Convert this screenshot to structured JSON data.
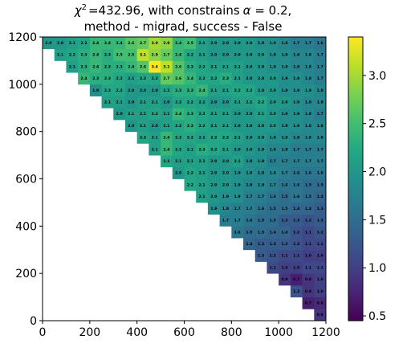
{
  "chart_data": {
    "type": "heatmap",
    "title_line1": "=432.96, with constrains",
    "title_chi": "χ",
    "title_chi_sup": "2",
    "title_alpha": "α",
    "title_alpha_value": " = 0.2,",
    "title_line2": "method - migrad, success - False",
    "xlim": [
      0,
      1200
    ],
    "ylim": [
      0,
      1200
    ],
    "x_ticks": [
      "0",
      "200",
      "400",
      "600",
      "800",
      "1000",
      "1200"
    ],
    "x_tick_values": [
      0,
      200,
      400,
      600,
      800,
      1000,
      1200
    ],
    "y_ticks": [
      "0",
      "200",
      "400",
      "600",
      "800",
      "1000",
      "1200"
    ],
    "y_tick_values": [
      0,
      200,
      400,
      600,
      800,
      1000,
      1200
    ],
    "colorbar_ticks": [
      "0.5",
      "1.0",
      "1.5",
      "2.0",
      "2.5",
      "3.0"
    ],
    "colorbar_tick_values": [
      0.5,
      1.0,
      1.5,
      2.0,
      2.5,
      3.0
    ],
    "colorbar_range": [
      0.45,
      3.4
    ],
    "colormap": "viridis",
    "bin_size": 50,
    "n_bins": 24,
    "layout_note_free": true,
    "rows": [
      [
        0.9
      ],
      [
        0.7,
        0.8
      ],
      [
        1.2,
        0.9,
        1.0
      ],
      [
        0.9,
        0.7,
        0.9,
        1.0
      ],
      [
        1.1,
        1.0,
        1.0,
        1.1,
        1.1
      ],
      [
        1.3,
        1.2,
        1.1,
        1.1,
        1.0,
        1.0
      ],
      [
        1.4,
        1.3,
        1.3,
        1.3,
        1.2,
        1.1,
        1.1
      ],
      [
        1.6,
        1.5,
        1.5,
        1.4,
        1.4,
        1.2,
        1.1,
        1.2
      ],
      [
        1.7,
        1.7,
        1.6,
        1.5,
        1.5,
        1.3,
        1.3,
        1.2,
        1.3
      ],
      [
        1.9,
        1.8,
        1.7,
        1.7,
        1.6,
        1.5,
        1.5,
        1.4,
        1.4,
        1.3
      ],
      [
        2.1,
        2.0,
        1.9,
        1.9,
        1.7,
        1.7,
        1.6,
        1.5,
        1.6,
        1.5,
        1.4
      ],
      [
        2.2,
        2.1,
        2.0,
        2.0,
        1.9,
        1.8,
        1.8,
        1.7,
        1.6,
        1.6,
        1.5,
        1.5
      ],
      [
        2.0,
        2.2,
        2.1,
        2.0,
        2.0,
        1.9,
        1.9,
        1.8,
        1.8,
        1.7,
        1.6,
        1.6,
        1.6
      ],
      [
        2.2,
        2.1,
        2.1,
        2.1,
        2.0,
        2.0,
        2.1,
        1.9,
        1.9,
        1.7,
        1.7,
        1.7,
        1.7,
        1.7
      ],
      [
        2.1,
        2.4,
        2.2,
        2.1,
        2.3,
        2.2,
        2.1,
        2.0,
        2.0,
        1.9,
        1.8,
        1.8,
        1.7,
        1.7,
        1.7
      ],
      [
        2.2,
        2.1,
        2.4,
        2.2,
        2.2,
        2.1,
        2.2,
        2.2,
        2.1,
        2.0,
        2.0,
        1.9,
        1.9,
        1.8,
        1.8,
        1.8
      ],
      [
        2.0,
        2.1,
        2.0,
        2.1,
        2.2,
        2.3,
        2.2,
        2.1,
        2.1,
        2.0,
        2.0,
        2.0,
        2.0,
        1.9,
        1.9,
        1.8,
        1.8
      ],
      [
        2.0,
        2.1,
        2.1,
        2.2,
        2.1,
        2.4,
        2.3,
        2.2,
        2.1,
        2.1,
        2.0,
        2.0,
        2.1,
        2.0,
        1.9,
        1.9,
        1.8,
        1.7
      ],
      [
        2.1,
        2.1,
        2.0,
        2.1,
        2.1,
        2.0,
        2.2,
        2.2,
        2.1,
        2.0,
        2.0,
        2.1,
        2.1,
        2.2,
        2.0,
        2.0,
        1.9,
        1.8,
        1.8
      ],
      [
        1.9,
        2.2,
        2.2,
        2.0,
        2.0,
        2.0,
        2.2,
        2.3,
        2.3,
        2.4,
        2.1,
        2.1,
        2.2,
        2.2,
        2.0,
        2.0,
        1.9,
        1.9,
        1.9,
        1.8
      ],
      [
        2.4,
        2.3,
        2.3,
        2.2,
        2.1,
        2.2,
        2.2,
        2.7,
        2.6,
        2.4,
        2.2,
        2.2,
        2.3,
        2.1,
        2.0,
        2.0,
        2.0,
        1.9,
        1.9,
        1.8,
        1.7
      ],
      [
        2.1,
        2.3,
        2.4,
        2.3,
        2.3,
        2.4,
        2.6,
        3.4,
        3.1,
        2.6,
        2.3,
        2.2,
        2.1,
        2.1,
        2.1,
        2.0,
        2.0,
        1.9,
        1.9,
        1.8,
        1.8,
        1.7
      ],
      [
        2.1,
        2.2,
        2.3,
        2.4,
        2.3,
        2.5,
        2.5,
        3.1,
        2.9,
        2.7,
        2.4,
        2.2,
        2.1,
        2.0,
        2.0,
        2.0,
        2.0,
        2.0,
        1.9,
        1.9,
        1.8,
        1.8,
        1.7
      ],
      [
        2.0,
        2.0,
        2.1,
        2.2,
        2.4,
        2.4,
        2.4,
        2.6,
        2.7,
        3.0,
        2.9,
        2.4,
        2.5,
        2.1,
        2.0,
        2.0,
        2.0,
        2.0,
        1.9,
        1.9,
        1.8,
        1.7,
        1.7,
        1.6
      ]
    ]
  }
}
